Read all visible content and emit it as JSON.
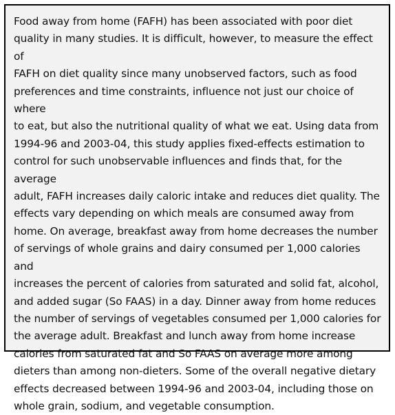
{
  "abstract": {
    "text": "Food away from home (FAFH) has been associated with poor diet\nquality in many studies. It is difficult, however, to measure the effect of\nFAFH on diet quality since many unobserved factors, such as food\npreferences and time constraints, influence not just our choice of where\nto eat, but also the nutritional quality of what we eat. Using data from\n1994-96 and 2003-04, this study applies fixed-effects estimation to\ncontrol for such unobservable influences and finds that, for the average\nadult, FAFH increases daily caloric intake and reduces diet quality. The\neffects vary depending on which meals are consumed away from\nhome. On average, breakfast away from home decreases the number\nof servings of whole grains and dairy consumed per 1,000 calories and\nincreases the percent of calories from saturated and solid fat, alcohol,\nand added sugar (So FAAS) in a day. Dinner away from home reduces\nthe number of servings of vegetables consumed per 1,000 calories for\nthe average adult. Breakfast and lunch away from home increase\ncalories from saturated fat and So FAAS on average more among\ndieters than among non-dieters. Some of the overall negative dietary\neffects decreased between 1994-96 and 2003-04, including those on\nwhole grain, sodium, and vegetable consumption."
  }
}
